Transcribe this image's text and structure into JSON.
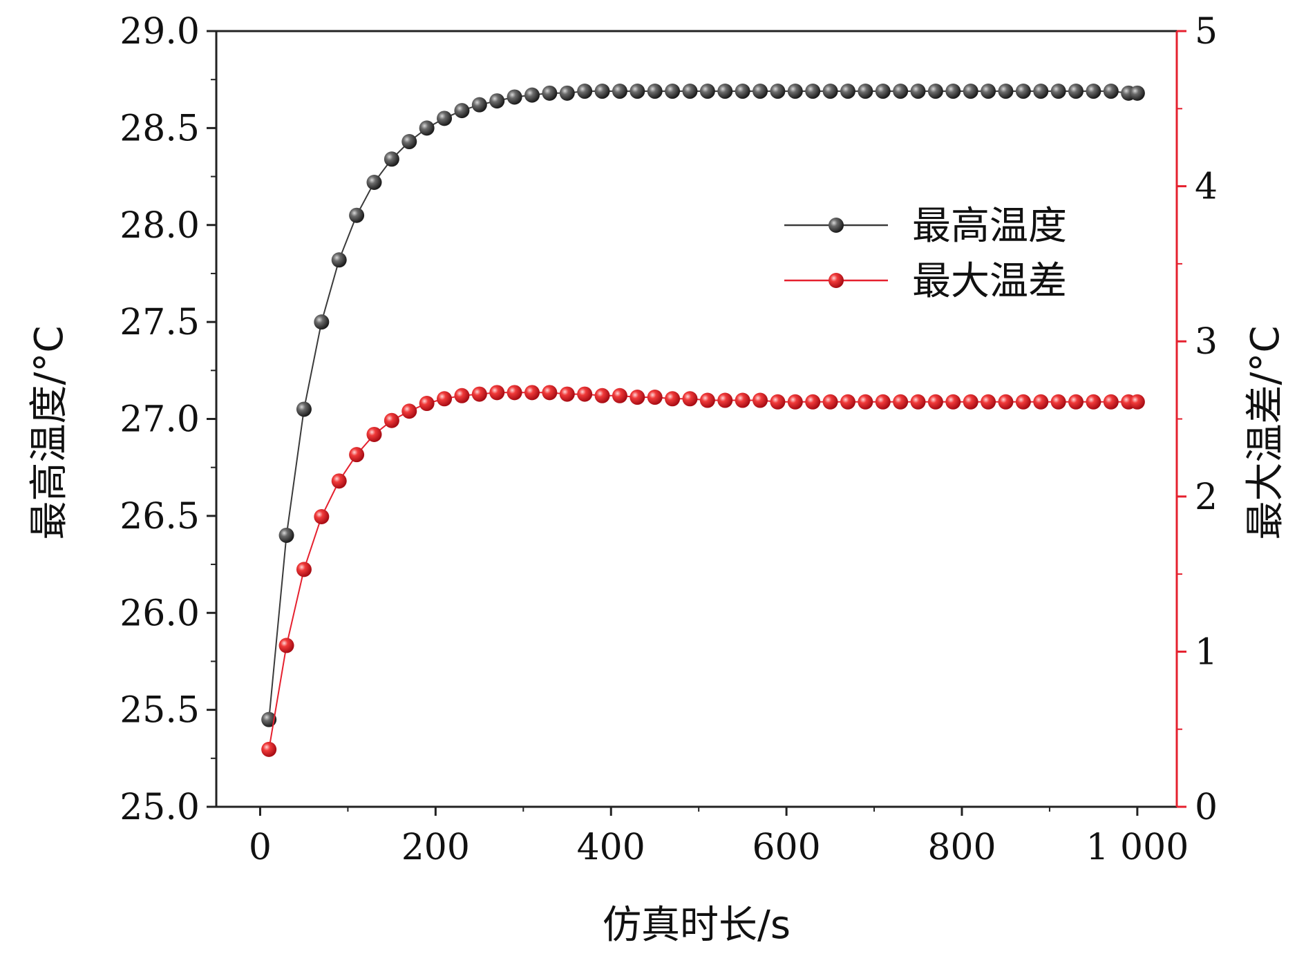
{
  "chart_data": {
    "type": "line",
    "title": "",
    "xlabel": "仿真时长/s",
    "ylabel_left": "最高温度/°C",
    "ylabel_right": "最大温差/°C",
    "xlim": [
      -50,
      1045
    ],
    "ylim_left": [
      25.0,
      29.0
    ],
    "ylim_right": [
      0,
      5
    ],
    "x_ticks": [
      0,
      200,
      400,
      600,
      800,
      1000
    ],
    "x_tick_labels": [
      "0",
      "200",
      "400",
      "600",
      "800",
      "1 000"
    ],
    "y_left_ticks": [
      25.0,
      25.5,
      26.0,
      26.5,
      27.0,
      27.5,
      28.0,
      28.5,
      29.0
    ],
    "y_left_tick_labels": [
      "25.0",
      "25.5",
      "26.0",
      "26.5",
      "27.0",
      "27.5",
      "28.0",
      "28.5",
      "29.0"
    ],
    "y_right_ticks": [
      0,
      1,
      2,
      3,
      4,
      5
    ],
    "y_right_tick_labels": [
      "0",
      "1",
      "2",
      "3",
      "4",
      "5"
    ],
    "legend_position": "center-right",
    "grid": false,
    "x": [
      10,
      30,
      50,
      70,
      90,
      110,
      130,
      150,
      170,
      190,
      210,
      230,
      250,
      270,
      290,
      310,
      330,
      350,
      370,
      390,
      410,
      430,
      450,
      470,
      490,
      510,
      530,
      550,
      570,
      590,
      610,
      630,
      650,
      670,
      690,
      710,
      730,
      750,
      770,
      790,
      810,
      830,
      850,
      870,
      890,
      910,
      930,
      950,
      970,
      990,
      1000
    ],
    "series": [
      {
        "name": "最高温度",
        "axis": "left",
        "color": "#3a3a3a",
        "values": [
          25.45,
          26.4,
          27.05,
          27.5,
          27.82,
          28.05,
          28.22,
          28.34,
          28.43,
          28.5,
          28.55,
          28.59,
          28.62,
          28.64,
          28.66,
          28.67,
          28.68,
          28.68,
          28.69,
          28.69,
          28.69,
          28.69,
          28.69,
          28.69,
          28.69,
          28.69,
          28.69,
          28.69,
          28.69,
          28.69,
          28.69,
          28.69,
          28.69,
          28.69,
          28.69,
          28.69,
          28.69,
          28.69,
          28.69,
          28.69,
          28.69,
          28.69,
          28.69,
          28.69,
          28.69,
          28.69,
          28.69,
          28.69,
          28.69,
          28.68,
          28.68
        ]
      },
      {
        "name": "最大温差",
        "axis": "right",
        "color": "#e5202e",
        "values": [
          0.37,
          1.04,
          1.53,
          1.87,
          2.1,
          2.27,
          2.4,
          2.49,
          2.55,
          2.6,
          2.63,
          2.65,
          2.66,
          2.67,
          2.67,
          2.67,
          2.67,
          2.66,
          2.66,
          2.65,
          2.65,
          2.64,
          2.64,
          2.63,
          2.63,
          2.62,
          2.62,
          2.62,
          2.62,
          2.61,
          2.61,
          2.61,
          2.61,
          2.61,
          2.61,
          2.61,
          2.61,
          2.61,
          2.61,
          2.61,
          2.61,
          2.61,
          2.61,
          2.61,
          2.61,
          2.61,
          2.61,
          2.61,
          2.61,
          2.61,
          2.61
        ]
      }
    ]
  }
}
